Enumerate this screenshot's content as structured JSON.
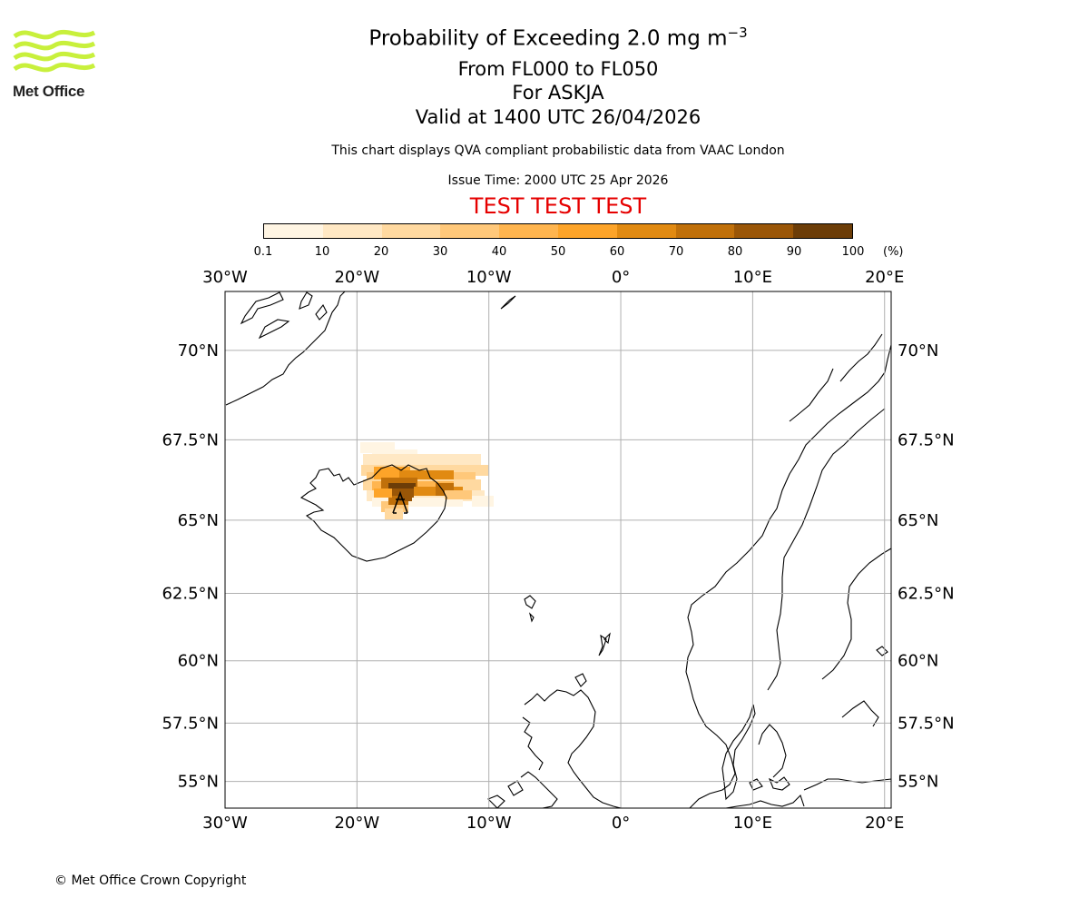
{
  "header": {
    "title": "Probability of Exceeding 2.0 mg m",
    "title_sup": "−3",
    "levels": "From FL000 to FL050",
    "volcano": "For ASKJA",
    "valid": "Valid at 1400 UTC 26/04/2026",
    "disclaimer": "This chart displays QVA compliant probabilistic data from VAAC London",
    "issue": "Issue Time: 2000 UTC 25 Apr 2026",
    "test_banner": "TEST TEST TEST",
    "test_color": "#e60000"
  },
  "logo": {
    "text": "Met Office",
    "icon": "met-office-waves-logo",
    "color": "#c8f03c"
  },
  "colorbar": {
    "labels": [
      "0.1",
      "10",
      "20",
      "30",
      "40",
      "50",
      "60",
      "70",
      "80",
      "90",
      "100"
    ],
    "unit": "(%)",
    "colors": [
      "#fff5e3",
      "#ffe8c4",
      "#ffd9a0",
      "#ffc87a",
      "#ffb54f",
      "#fda429",
      "#e18a12",
      "#c0700a",
      "#9a5607",
      "#6c3d08"
    ]
  },
  "map": {
    "lon_range": [
      -30,
      20.5
    ],
    "lat_range": [
      53.8,
      71.5
    ],
    "projection": "Mercator",
    "lon_ticks": [
      "30°W",
      "20°W",
      "10°W",
      "0°",
      "10°E",
      "20°E"
    ],
    "lat_ticks": [
      "70°N",
      "67.5°N",
      "65°N",
      "62.5°N",
      "60°N",
      "57.5°N",
      "55°N"
    ],
    "grid": true,
    "volcano_marker": {
      "name": "ASKJA",
      "icon": "volcano-triangle-icon"
    }
  },
  "footer": {
    "copyright": "© Met Office Crown Copyright"
  }
}
